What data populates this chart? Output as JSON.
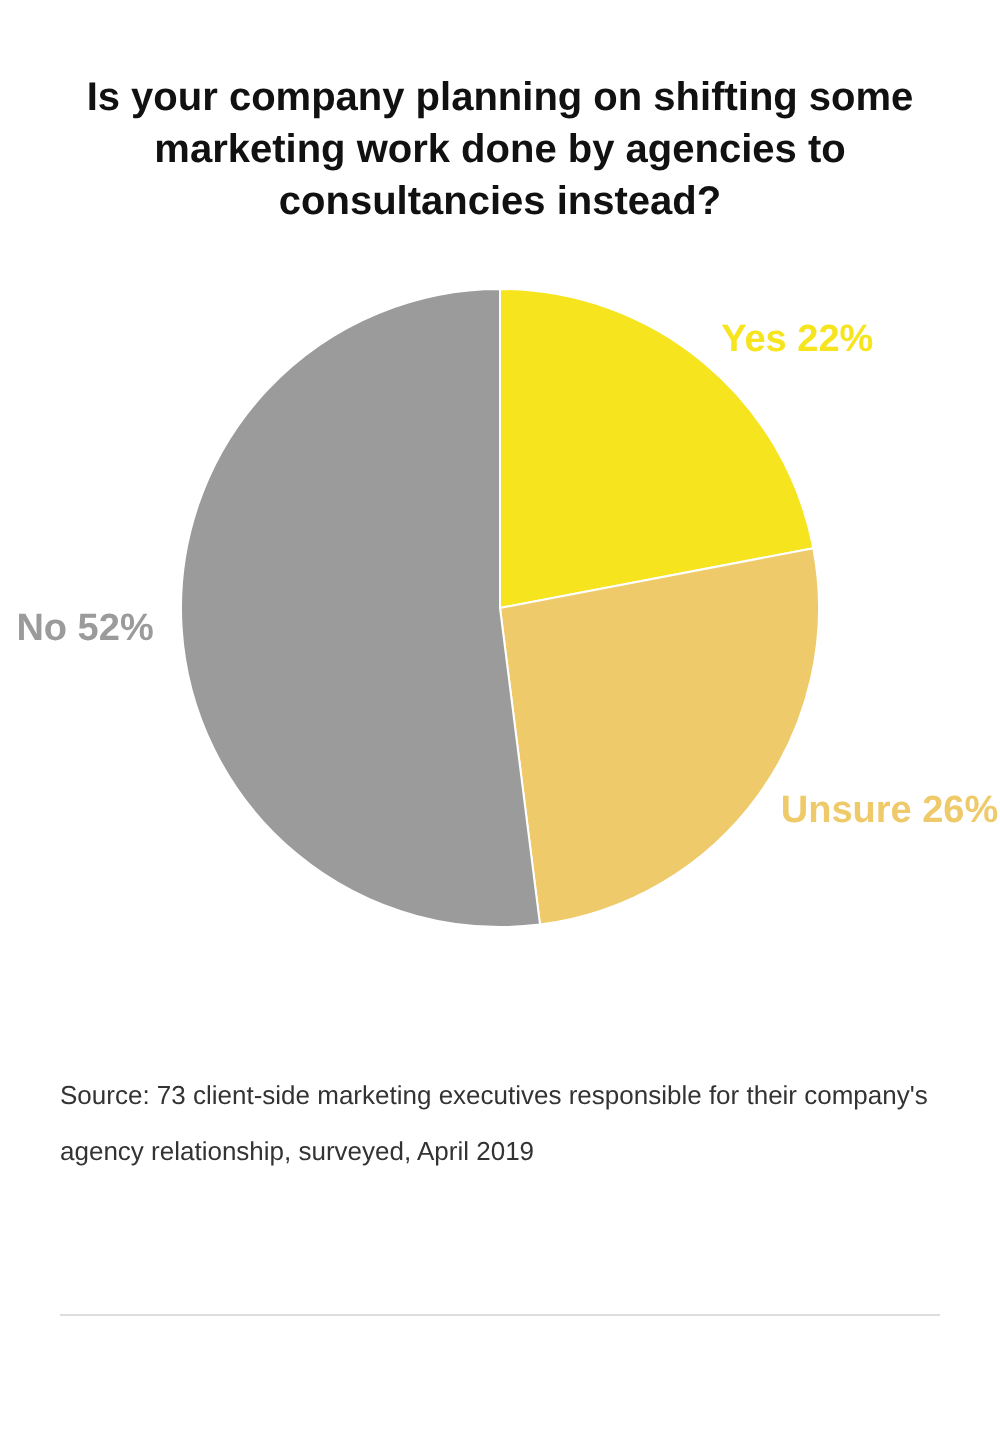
{
  "chart_data": {
    "type": "pie",
    "title": "Is your company planning on shifting some marketing work done by agencies to consultancies instead?",
    "categories": [
      "Yes",
      "Unsure",
      "No"
    ],
    "values": [
      22,
      26,
      52
    ],
    "value_labels": [
      "22%",
      "26%",
      "52%"
    ],
    "colors": [
      "#f6e41f",
      "#efca6a",
      "#9b9b9b"
    ],
    "legend": false,
    "annotations": [
      "Source: 73 client-side marketing executives responsible for their company's agency relationship, surveyed, April 2019"
    ]
  }
}
